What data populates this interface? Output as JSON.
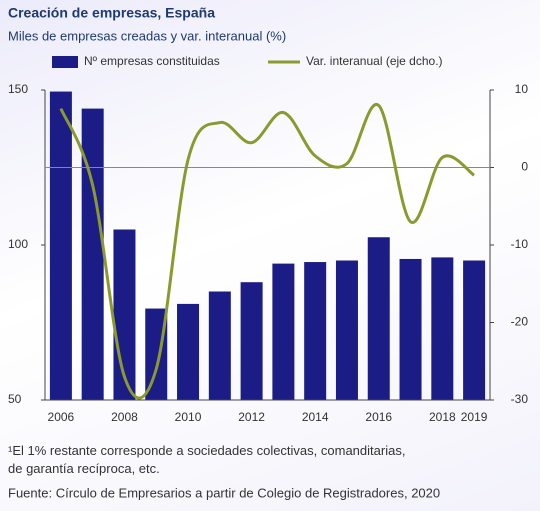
{
  "chart_data": {
    "type": "bar_line",
    "title": "Creación de empresas, España",
    "subtitle": "Miles de empresas creadas y var. interanual (%)",
    "categories": [
      "2006",
      null,
      "2008",
      null,
      "2010",
      null,
      "2012",
      null,
      "2014",
      null,
      "2016",
      null,
      "2018",
      "2019"
    ],
    "series": [
      {
        "name": "Nº empresas constituidas",
        "color": "#1c1c86",
        "type": "bar",
        "values": [
          149.5,
          144,
          105,
          79.5,
          81,
          85,
          88,
          94,
          94.5,
          95,
          102.5,
          95.5,
          96,
          95
        ]
      },
      {
        "name": "Var. interanual (eje dcho.)",
        "color": "#8a9a2e",
        "type": "line",
        "axis": "y2",
        "values": [
          7.6,
          -2.3,
          -27,
          -26,
          1,
          5.8,
          3.2,
          7.1,
          1.5,
          0.5,
          8,
          -7,
          1.3,
          -1
        ]
      }
    ],
    "ylim": [
      50,
      150
    ],
    "yticks": [
      50,
      100,
      150
    ],
    "y2lim": [
      -30,
      10
    ],
    "y2ticks": [
      -30,
      -20,
      -10,
      0,
      10
    ],
    "zero_line": true,
    "legend": "top",
    "footnote": "¹El 1% restante corresponde a sociedades colectivas, comanditarias, de garantía recíproca, etc.",
    "source": "Fuente: Círculo de Empresarios a partir de Colegio de Registradores, 2020"
  }
}
